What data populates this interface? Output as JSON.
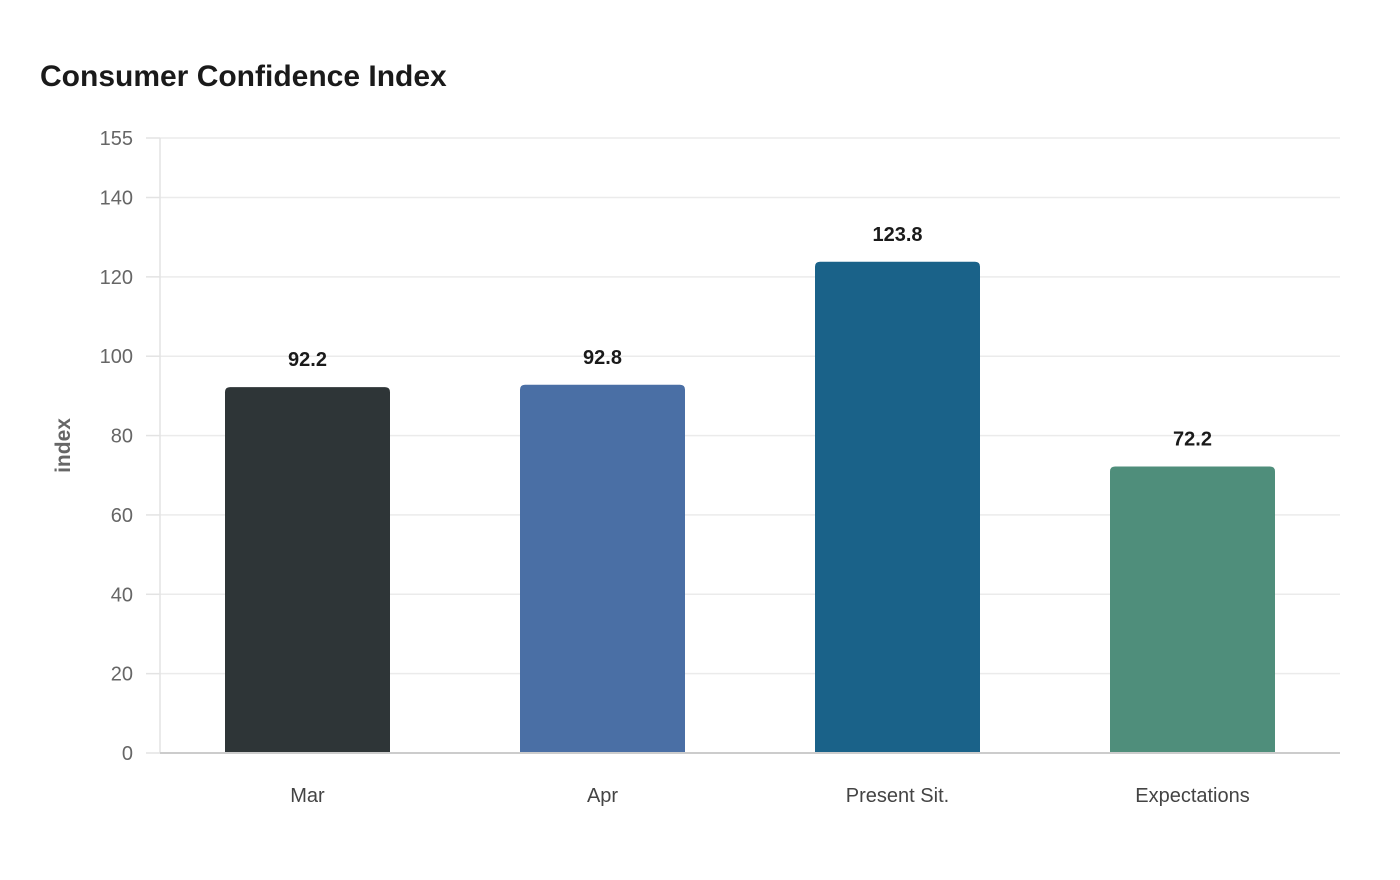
{
  "chart_data": {
    "type": "bar",
    "title": "Consumer Confidence Index",
    "xlabel": "",
    "ylabel": "index",
    "categories": [
      "Mar",
      "Apr",
      "Present Sit.",
      "Expectations"
    ],
    "values": [
      92.2,
      92.8,
      123.8,
      72.2
    ],
    "colors": [
      "#2e3537",
      "#4a6fa5",
      "#1a6289",
      "#4f8e7b"
    ],
    "ylim": [
      0,
      155
    ],
    "yticks": [
      0,
      20,
      40,
      60,
      80,
      100,
      120,
      140,
      155
    ],
    "grid": true,
    "legend": "none",
    "gridline_color": "#ebebeb",
    "axis_color": "#cccccc"
  }
}
